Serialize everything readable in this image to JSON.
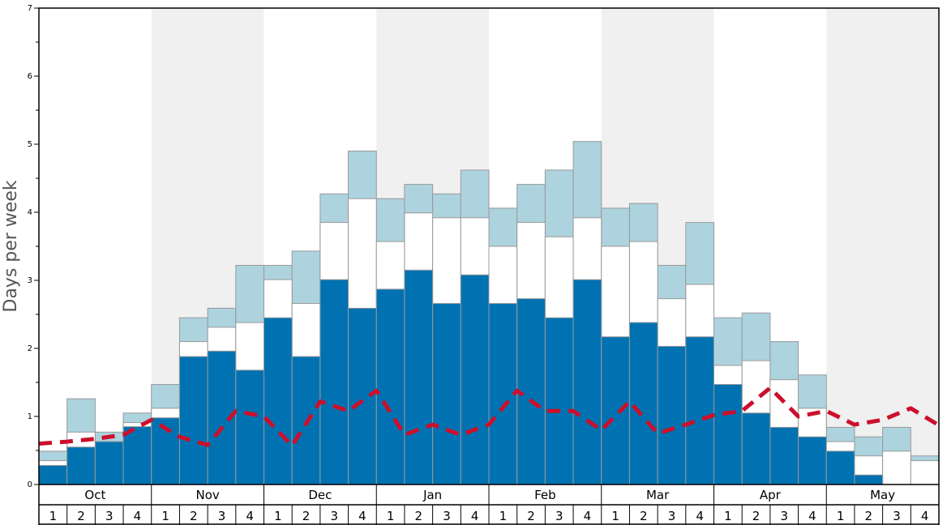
{
  "chart_data": {
    "type": "bar",
    "title": "",
    "xlabel": "",
    "ylabel": "Days per week",
    "ylim": [
      0,
      7
    ],
    "yticks": [
      "0",
      "1",
      "2",
      "3",
      "4",
      "5",
      "6",
      "7"
    ],
    "months": [
      "Oct",
      "Nov",
      "Dec",
      "Jan",
      "Feb",
      "Mar",
      "Apr",
      "May"
    ],
    "weeks_per_month": [
      "1",
      "2",
      "3",
      "4"
    ],
    "colors": {
      "dark": "#0072b2",
      "middle": "#ffffff",
      "light": "#add3df",
      "line": "#cc0f2b",
      "band": "#f0f0f0",
      "bar_stroke": "#999999"
    },
    "series": [
      {
        "name": "dark",
        "values": [
          0.28,
          0.55,
          0.63,
          0.85,
          0.98,
          1.88,
          1.96,
          1.68,
          2.45,
          1.88,
          3.01,
          2.59,
          2.87,
          3.15,
          2.66,
          3.08,
          2.66,
          2.73,
          2.45,
          3.01,
          2.17,
          2.38,
          2.03,
          2.17,
          1.47,
          1.05,
          0.84,
          0.7,
          0.49,
          0.14,
          0.0,
          0.0
        ]
      },
      {
        "name": "middle",
        "values": [
          0.35,
          0.77,
          0.63,
          0.91,
          1.12,
          2.1,
          2.31,
          2.38,
          3.01,
          2.66,
          3.85,
          4.2,
          3.57,
          3.99,
          3.92,
          3.92,
          3.5,
          3.85,
          3.64,
          3.92,
          3.5,
          3.57,
          2.73,
          2.94,
          1.75,
          1.82,
          1.54,
          1.12,
          0.63,
          0.42,
          0.49,
          0.35
        ]
      },
      {
        "name": "light",
        "values": [
          0.49,
          1.26,
          0.77,
          1.05,
          1.47,
          2.45,
          2.59,
          3.22,
          3.22,
          3.43,
          4.27,
          4.9,
          4.2,
          4.41,
          4.27,
          4.62,
          4.06,
          4.41,
          4.62,
          5.04,
          4.06,
          4.13,
          3.22,
          3.85,
          2.45,
          2.52,
          2.1,
          1.61,
          0.84,
          0.7,
          0.84,
          0.42
        ]
      },
      {
        "name": "average",
        "values": [
          0.6,
          0.63,
          0.67,
          0.73,
          0.95,
          0.7,
          0.58,
          1.08,
          1.0,
          0.57,
          1.22,
          1.08,
          1.38,
          0.73,
          0.88,
          0.73,
          0.88,
          1.38,
          1.08,
          1.08,
          0.8,
          1.22,
          0.75,
          0.88,
          1.02,
          1.08,
          1.42,
          1.0,
          1.08,
          0.88,
          0.95,
          1.12,
          0.87
        ]
      }
    ]
  }
}
